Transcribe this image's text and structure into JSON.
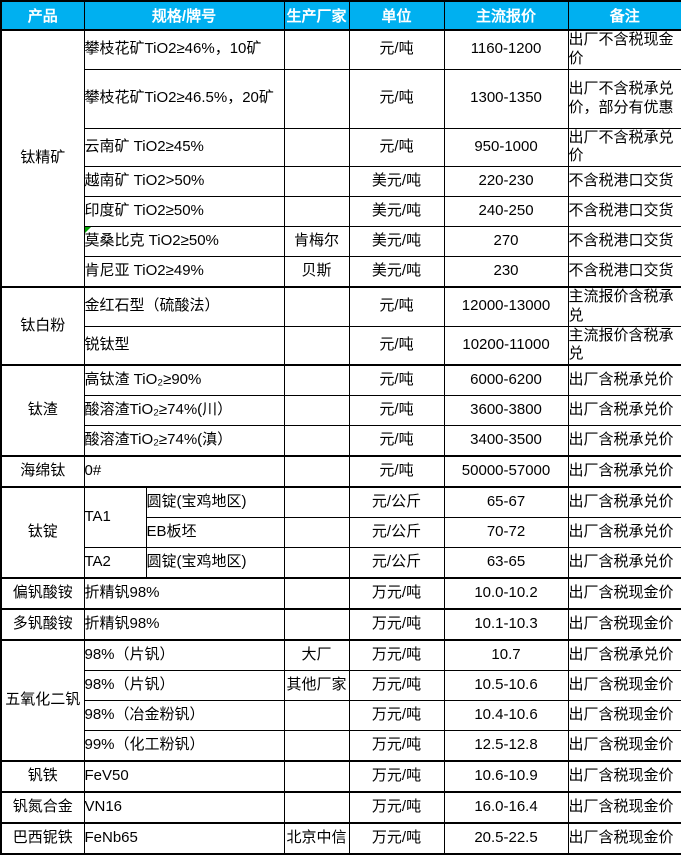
{
  "colors": {
    "header_bg": "#00B0F0",
    "header_text": "#FFFFFF",
    "border": "#000000",
    "body_bg": "#FFFFFF",
    "comment_marker": "#00A000"
  },
  "table": {
    "columns": [
      "产品",
      "规格/牌号",
      "生产厂家",
      "单位",
      "主流报价",
      "备注"
    ],
    "sections": [
      {
        "product": "钛精矿",
        "rows": [
          {
            "spec": "攀枝花矿TiO2≥46%，10矿",
            "maker": "",
            "unit": "元/吨",
            "price": "1160-1200",
            "note": "出厂不含税现金价"
          },
          {
            "spec": "攀枝花矿TiO2≥46.5%，20矿",
            "maker": "",
            "unit": "元/吨",
            "price": "1300-1350",
            "note": "出厂不含税承兑价，部分有优惠",
            "tall": true
          },
          {
            "spec": "云南矿 TiO2≥45%",
            "maker": "",
            "unit": "元/吨",
            "price": "950-1000",
            "note": "出厂不含税承兑价"
          },
          {
            "spec": "越南矿 TiO2>50%",
            "maker": "",
            "unit": "美元/吨",
            "price": "220-230",
            "note": "不含税港口交货"
          },
          {
            "spec": "印度矿 TiO2≥50%",
            "maker": "",
            "unit": "美元/吨",
            "price": "240-250",
            "note": "不含税港口交货"
          },
          {
            "spec": "莫桑比克 TiO2≥50%",
            "maker": "肯梅尔",
            "unit": "美元/吨",
            "price": "270",
            "note": "不含税港口交货",
            "comment": true
          },
          {
            "spec": "肯尼亚 TiO2≥49%",
            "maker": "贝斯",
            "unit": "美元/吨",
            "price": "230",
            "note": "不含税港口交货"
          }
        ]
      },
      {
        "product": "钛白粉",
        "rows": [
          {
            "spec": "金红石型（硫酸法）",
            "maker": "",
            "unit": "元/吨",
            "price": "12000-13000",
            "note": "主流报价含税承兑"
          },
          {
            "spec": "锐钛型",
            "maker": "",
            "unit": "元/吨",
            "price": "10200-11000",
            "note": "主流报价含税承兑"
          }
        ]
      },
      {
        "product": "钛渣",
        "rows": [
          {
            "spec": "高钛渣 TiO₂≥90%",
            "maker": "",
            "unit": "元/吨",
            "price": "6000-6200",
            "note": "出厂含税承兑价"
          },
          {
            "spec": "酸溶渣TiO₂≥74%(川）",
            "maker": "",
            "unit": "元/吨",
            "price": "3600-3800",
            "note": "出厂含税承兑价"
          },
          {
            "spec": "酸溶渣TiO₂≥74%(滇）",
            "maker": "",
            "unit": "元/吨",
            "price": "3400-3500",
            "note": "出厂含税承兑价"
          }
        ]
      },
      {
        "product": "海绵钛",
        "rows": [
          {
            "spec": "0#",
            "maker": "",
            "unit": "元/吨",
            "price": "50000-57000",
            "note": "出厂含税承兑价"
          }
        ]
      },
      {
        "product": "钛锭",
        "rows": [
          {
            "grade": "TA1",
            "grade_rowspan": 2,
            "spec": "圆锭(宝鸡地区)",
            "maker": "",
            "unit": "元/公斤",
            "price": "65-67",
            "note": "出厂含税承兑价"
          },
          {
            "grade": null,
            "spec": "EB板坯",
            "maker": "",
            "unit": "元/公斤",
            "price": "70-72",
            "note": "出厂含税承兑价"
          },
          {
            "grade": "TA2",
            "grade_rowspan": 1,
            "spec": "圆锭(宝鸡地区)",
            "maker": "",
            "unit": "元/公斤",
            "price": "63-65",
            "note": "出厂含税承兑价"
          }
        ]
      },
      {
        "product": "偏钒酸铵",
        "rows": [
          {
            "spec": "折精钒98%",
            "maker": "",
            "unit": "万元/吨",
            "price": "10.0-10.2",
            "note": "出厂含税现金价"
          }
        ]
      },
      {
        "product": "多钒酸铵",
        "rows": [
          {
            "spec": "折精钒98%",
            "maker": "",
            "unit": "万元/吨",
            "price": "10.1-10.3",
            "note": "出厂含税现金价"
          }
        ]
      },
      {
        "product": "五氧化二钒",
        "rows": [
          {
            "spec": "98%（片钒）",
            "maker": "大厂",
            "unit": "万元/吨",
            "price": "10.7",
            "note": "出厂含税承兑价"
          },
          {
            "spec": "98%（片钒）",
            "maker": "其他厂家",
            "unit": "万元/吨",
            "price": "10.5-10.6",
            "note": "出厂含税现金价"
          },
          {
            "spec": "98%（冶金粉钒）",
            "maker": "",
            "unit": "万元/吨",
            "price": "10.4-10.6",
            "note": "出厂含税现金价"
          },
          {
            "spec": "99%（化工粉钒）",
            "maker": "",
            "unit": "万元/吨",
            "price": "12.5-12.8",
            "note": "出厂含税现金价"
          }
        ]
      },
      {
        "product": "钒铁",
        "rows": [
          {
            "spec": "FeV50",
            "maker": "",
            "unit": "万元/吨",
            "price": "10.6-10.9",
            "note": "出厂含税现金价"
          }
        ]
      },
      {
        "product": "钒氮合金",
        "rows": [
          {
            "spec": "VN16",
            "maker": "",
            "unit": "万元/吨",
            "price": "16.0-16.4",
            "note": "出厂含税现金价"
          }
        ]
      },
      {
        "product": "巴西铌铁",
        "rows": [
          {
            "spec": "FeNb65",
            "maker": "北京中信",
            "unit": "万元/吨",
            "price": "20.5-22.5",
            "note": "出厂含税现金价"
          }
        ]
      }
    ]
  }
}
